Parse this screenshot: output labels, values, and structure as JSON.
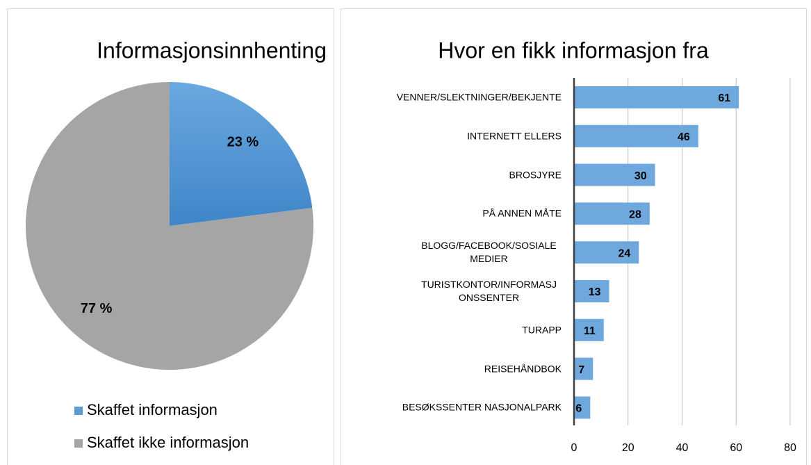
{
  "chart_data": [
    {
      "type": "pie",
      "title": "Informasjonsinnhenting",
      "categories": [
        "Skaffet informasjon",
        "Skaffet ikke informasjon"
      ],
      "values": [
        23,
        77
      ],
      "value_labels": [
        "23 %",
        "77 %"
      ],
      "colors": [
        "#5b9bd5",
        "#a5a5a5"
      ],
      "legend": "bottom"
    },
    {
      "type": "bar",
      "orientation": "horizontal",
      "title": "Hvor en fikk informasjon fra",
      "categories": [
        "VENNER/SLEKTNINGER/BEKJENTE",
        "INTERNETT ELLERS",
        "BROSJYRE",
        "PÅ ANNEN MÅTE",
        "BLOGG/FACEBOOK/SOSIALE MEDIER",
        "TURISTKONTOR/INFORMASJONSSENTER",
        "TURAPP",
        "REISEHÅNDBOK",
        "BESØKSSENTER NASJONALPARK"
      ],
      "values": [
        61,
        46,
        30,
        28,
        24,
        13,
        11,
        7,
        6
      ],
      "color": "#6fa8dc",
      "xlim": [
        0,
        80
      ],
      "xticks": [
        0,
        20,
        40,
        60,
        80
      ],
      "grid": true
    }
  ]
}
